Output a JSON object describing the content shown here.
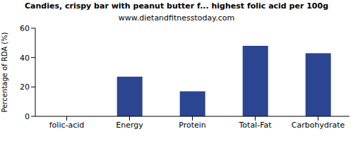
{
  "chart_data": {
    "type": "bar",
    "title": "Candies, crispy bar with peanut butter f... highest folic acid per 100g",
    "subtitle": "www.dietandfitnesstoday.com",
    "y_label": "Percentage of RDA (%)",
    "categories": [
      "folic-acid",
      "Energy",
      "Protein",
      "Total-Fat",
      "Carbohydrate"
    ],
    "values": [
      0,
      27,
      17,
      48,
      43
    ],
    "color": "#2b4590",
    "ylim": [
      0,
      60
    ],
    "yticks": [
      0,
      20,
      40,
      60
    ],
    "grid": false
  }
}
